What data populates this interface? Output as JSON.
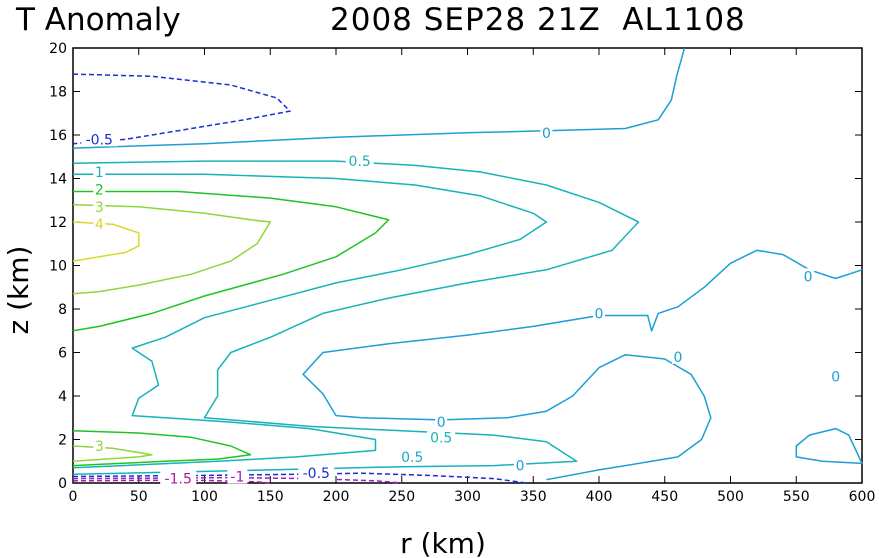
{
  "header": {
    "title_left": "T Anomaly",
    "title_right": "2008 SEP28 21Z  AL1108"
  },
  "chart_data": {
    "type": "contour",
    "title": "T Anomaly   2008 SEP28 21Z  AL1108",
    "xlabel": "r (km)",
    "ylabel": "z (km)",
    "xlim": [
      0,
      600
    ],
    "ylim": [
      0,
      20
    ],
    "xticks": [
      "0",
      "50",
      "100",
      "150",
      "200",
      "250",
      "300",
      "350",
      "400",
      "450",
      "500",
      "550",
      "600"
    ],
    "yticks": [
      "0",
      "2",
      "4",
      "6",
      "8",
      "10",
      "12",
      "14",
      "16",
      "18",
      "20"
    ],
    "grid": false,
    "contour_labels": [
      {
        "text": "-0.5",
        "x": 20,
        "y": 15.8,
        "color": "#1a2fd0"
      },
      {
        "text": "0",
        "x": 360,
        "y": 16.1,
        "color": "#1a9fd6"
      },
      {
        "text": "0.5",
        "x": 218,
        "y": 14.8,
        "color": "#17b3b8"
      },
      {
        "text": "1",
        "x": 20,
        "y": 14.3,
        "color": "#17b3b8"
      },
      {
        "text": "2",
        "x": 20,
        "y": 13.5,
        "color": "#1ec423"
      },
      {
        "text": "3",
        "x": 20,
        "y": 12.7,
        "color": "#8ed63a"
      },
      {
        "text": "4",
        "x": 20,
        "y": 11.9,
        "color": "#d8d82a"
      },
      {
        "text": "0",
        "x": 559,
        "y": 9.5,
        "color": "#1a9fd6"
      },
      {
        "text": "0",
        "x": 400,
        "y": 7.8,
        "color": "#1a9fd6"
      },
      {
        "text": "0",
        "x": 460,
        "y": 5.8,
        "color": "#1a9fd6"
      },
      {
        "text": "0",
        "x": 280,
        "y": 2.8,
        "color": "#1a9fd6"
      },
      {
        "text": "0.5",
        "x": 280,
        "y": 2.1,
        "color": "#17b3b8"
      },
      {
        "text": "0.5",
        "x": 258,
        "y": 1.2,
        "color": "#17b3b8"
      },
      {
        "text": "0",
        "x": 340,
        "y": 0.8,
        "color": "#1a9fd6"
      },
      {
        "text": "-0.5",
        "x": 185,
        "y": 0.45,
        "color": "#1a2fd0"
      },
      {
        "text": "-1",
        "x": 125,
        "y": 0.3,
        "color": "#9b20c8"
      },
      {
        "text": "-1.5",
        "x": 80,
        "y": 0.2,
        "color": "#b01aa0"
      },
      {
        "text": "3",
        "x": 20,
        "y": 1.7,
        "color": "#8ed63a"
      },
      {
        "text": "0",
        "x": 580,
        "y": 4.9,
        "color": "#1a9fd6"
      }
    ],
    "contours": [
      {
        "level": -0.5,
        "color": "#1a2fd0",
        "dashed": true,
        "closed": false,
        "points": [
          [
            0,
            18.8
          ],
          [
            60,
            18.7
          ],
          [
            120,
            18.3
          ],
          [
            155,
            17.7
          ],
          [
            165,
            17.1
          ],
          [
            130,
            16.7
          ],
          [
            80,
            16.2
          ],
          [
            40,
            15.8
          ],
          [
            0,
            15.6
          ]
        ]
      },
      {
        "level": 0,
        "color": "#1a9fd6",
        "dashed": false,
        "closed": false,
        "points": [
          [
            0,
            15.4
          ],
          [
            100,
            15.6
          ],
          [
            200,
            15.9
          ],
          [
            300,
            16.1
          ],
          [
            360,
            16.2
          ],
          [
            420,
            16.3
          ],
          [
            445,
            16.7
          ],
          [
            455,
            17.6
          ],
          [
            459,
            18.7
          ],
          [
            465,
            20
          ]
        ]
      },
      {
        "level": 0.5,
        "color": "#17b3b8",
        "dashed": false,
        "closed": false,
        "points": [
          [
            0,
            14.7
          ],
          [
            100,
            14.8
          ],
          [
            200,
            14.8
          ],
          [
            260,
            14.6
          ],
          [
            310,
            14.3
          ],
          [
            360,
            13.7
          ],
          [
            400,
            12.9
          ],
          [
            430,
            12.0
          ],
          [
            410,
            10.7
          ],
          [
            360,
            9.8
          ],
          [
            300,
            9.2
          ],
          [
            240,
            8.5
          ],
          [
            190,
            7.8
          ],
          [
            150,
            6.7
          ],
          [
            120,
            6.0
          ],
          [
            110,
            5.2
          ],
          [
            110,
            4.0
          ],
          [
            100,
            3.0
          ],
          [
            120,
            2.9
          ],
          [
            180,
            2.6
          ],
          [
            250,
            2.4
          ],
          [
            320,
            2.2
          ],
          [
            360,
            1.9
          ],
          [
            383,
            1.0
          ],
          [
            320,
            0.8
          ],
          [
            250,
            0.75
          ],
          [
            150,
            0.6
          ],
          [
            0,
            0.4
          ]
        ]
      },
      {
        "level": 1,
        "color": "#17b3b8",
        "dashed": false,
        "closed": false,
        "points": [
          [
            0,
            14.2
          ],
          [
            100,
            14.2
          ],
          [
            200,
            14.0
          ],
          [
            260,
            13.7
          ],
          [
            310,
            13.2
          ],
          [
            350,
            12.4
          ],
          [
            360,
            12.0
          ],
          [
            340,
            11.2
          ],
          [
            300,
            10.5
          ],
          [
            250,
            9.8
          ],
          [
            200,
            9.2
          ],
          [
            150,
            8.4
          ],
          [
            100,
            7.6
          ],
          [
            70,
            6.7
          ],
          [
            45,
            6.2
          ],
          [
            60,
            5.6
          ],
          [
            65,
            4.5
          ],
          [
            50,
            3.9
          ],
          [
            45,
            3.1
          ],
          [
            70,
            3.0
          ],
          [
            120,
            2.8
          ],
          [
            180,
            2.5
          ],
          [
            230,
            2.0
          ],
          [
            230,
            1.5
          ],
          [
            170,
            1.2
          ],
          [
            110,
            1.0
          ],
          [
            0,
            0.7
          ]
        ]
      },
      {
        "level": 2,
        "color": "#1ec423",
        "dashed": false,
        "closed": false,
        "points": [
          [
            0,
            13.4
          ],
          [
            80,
            13.4
          ],
          [
            150,
            13.1
          ],
          [
            200,
            12.7
          ],
          [
            240,
            12.1
          ],
          [
            230,
            11.5
          ],
          [
            200,
            10.4
          ],
          [
            160,
            9.6
          ],
          [
            100,
            8.6
          ],
          [
            60,
            7.8
          ],
          [
            20,
            7.2
          ],
          [
            0,
            7.0
          ]
        ]
      },
      {
        "level": 2,
        "color": "#1ec423",
        "dashed": false,
        "closed": false,
        "points": [
          [
            0,
            2.4
          ],
          [
            50,
            2.3
          ],
          [
            90,
            2.1
          ],
          [
            120,
            1.7
          ],
          [
            135,
            1.3
          ],
          [
            110,
            1.1
          ],
          [
            70,
            1.0
          ],
          [
            0,
            0.8
          ]
        ]
      },
      {
        "level": 3,
        "color": "#8ed63a",
        "dashed": false,
        "closed": false,
        "points": [
          [
            0,
            12.8
          ],
          [
            50,
            12.7
          ],
          [
            100,
            12.4
          ],
          [
            135,
            12.1
          ],
          [
            150,
            12.0
          ],
          [
            140,
            11.0
          ],
          [
            120,
            10.2
          ],
          [
            90,
            9.6
          ],
          [
            50,
            9.1
          ],
          [
            20,
            8.8
          ],
          [
            0,
            8.7
          ]
        ]
      },
      {
        "level": 3,
        "color": "#8ed63a",
        "dashed": false,
        "closed": false,
        "points": [
          [
            0,
            1.7
          ],
          [
            30,
            1.6
          ],
          [
            60,
            1.3
          ],
          [
            50,
            1.2
          ],
          [
            0,
            1.0
          ]
        ]
      },
      {
        "level": 4,
        "color": "#d8d82a",
        "dashed": false,
        "closed": false,
        "points": [
          [
            0,
            12.0
          ],
          [
            30,
            11.9
          ],
          [
            50,
            11.5
          ],
          [
            50,
            10.9
          ],
          [
            40,
            10.6
          ],
          [
            20,
            10.4
          ],
          [
            0,
            10.2
          ]
        ]
      },
      {
        "level": 0,
        "color": "#1a9fd6",
        "dashed": false,
        "closed": false,
        "points": [
          [
            360,
            0.15
          ],
          [
            400,
            0.6
          ],
          [
            440,
            1.0
          ],
          [
            460,
            1.2
          ],
          [
            478,
            2.0
          ],
          [
            485,
            3.0
          ],
          [
            480,
            4.0
          ],
          [
            470,
            5.0
          ],
          [
            450,
            5.7
          ],
          [
            420,
            5.9
          ],
          [
            400,
            5.3
          ],
          [
            380,
            4.0
          ],
          [
            360,
            3.3
          ],
          [
            330,
            3.0
          ],
          [
            280,
            2.9
          ],
          [
            220,
            3.0
          ],
          [
            200,
            3.1
          ],
          [
            190,
            4.1
          ],
          [
            175,
            5.0
          ],
          [
            190,
            6.0
          ],
          [
            240,
            6.4
          ],
          [
            300,
            6.8
          ],
          [
            350,
            7.2
          ],
          [
            400,
            7.7
          ],
          [
            437,
            7.7
          ],
          [
            440,
            7.0
          ],
          [
            445,
            7.8
          ],
          [
            460,
            8.1
          ],
          [
            480,
            9.0
          ],
          [
            500,
            10.1
          ],
          [
            520,
            10.7
          ],
          [
            540,
            10.5
          ],
          [
            560,
            9.8
          ],
          [
            580,
            9.4
          ],
          [
            600,
            9.8
          ]
        ]
      },
      {
        "level": 0,
        "color": "#1a9fd6",
        "dashed": false,
        "closed": false,
        "points": [
          [
            600,
            0.9
          ],
          [
            590,
            2.2
          ],
          [
            580,
            2.5
          ],
          [
            560,
            2.2
          ],
          [
            550,
            1.7
          ],
          [
            550,
            1.2
          ],
          [
            570,
            1.0
          ],
          [
            600,
            0.9
          ]
        ]
      },
      {
        "level": -0.5,
        "color": "#1a2fd0",
        "dashed": true,
        "closed": false,
        "points": [
          [
            0,
            0.3
          ],
          [
            100,
            0.35
          ],
          [
            170,
            0.4
          ],
          [
            220,
            0.45
          ],
          [
            270,
            0.35
          ],
          [
            320,
            0.2
          ],
          [
            345,
            0.0
          ]
        ]
      },
      {
        "level": -1,
        "color": "#9b20c8",
        "dashed": true,
        "closed": false,
        "points": [
          [
            0,
            0.2
          ],
          [
            60,
            0.22
          ],
          [
            120,
            0.25
          ],
          [
            180,
            0.2
          ],
          [
            230,
            0.1
          ],
          [
            250,
            0.0
          ]
        ]
      },
      {
        "level": -1.5,
        "color": "#b01aa0",
        "dashed": true,
        "closed": false,
        "points": [
          [
            0,
            0.1
          ],
          [
            50,
            0.12
          ],
          [
            100,
            0.12
          ],
          [
            140,
            0.05
          ],
          [
            150,
            0.0
          ]
        ]
      }
    ]
  }
}
